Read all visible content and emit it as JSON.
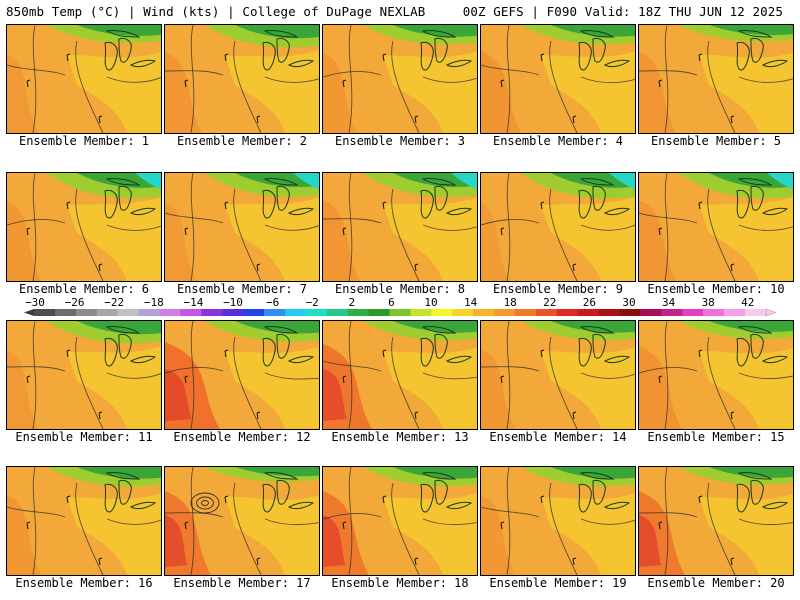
{
  "header": {
    "left_title": "850mb Temp (°C) | Wind (kts) | College of DuPage NEXLAB",
    "right_title": "00Z GEFS | F090 Valid: 18Z THU JUN 12 2025"
  },
  "colorbar": {
    "labels": [
      "−30",
      "−26",
      "−22",
      "−18",
      "−14",
      "−10",
      "−6",
      "−2",
      "2",
      "6",
      "10",
      "14",
      "18",
      "22",
      "26",
      "30",
      "34",
      "38",
      "42"
    ],
    "colors": [
      "#4c4c4c",
      "#6b6b6b",
      "#8a8a8a",
      "#a7a7a7",
      "#c0c0c0",
      "#b7a0d8",
      "#d07fe2",
      "#c455e8",
      "#8a35d8",
      "#5a2ee0",
      "#2244e6",
      "#2e8ff0",
      "#27c9f2",
      "#1ee0c8",
      "#27c889",
      "#2fae48",
      "#2e9a2e",
      "#7fc52a",
      "#c6e42a",
      "#f6f62a",
      "#f6d22a",
      "#f5b52b",
      "#f59a2b",
      "#f0792a",
      "#e8552a",
      "#de2a22",
      "#c81c1c",
      "#a81414",
      "#8a1010",
      "#a40f55",
      "#c8208a",
      "#e040c2",
      "#f070e0",
      "#f5a0ec",
      "#f7c8f0"
    ]
  },
  "panels": [
    {
      "label": "Ensemble Member: 1",
      "heat": 0.1,
      "green": 0.5
    },
    {
      "label": "Ensemble Member: 2",
      "heat": 0.3,
      "green": 0.8
    },
    {
      "label": "Ensemble Member: 3",
      "heat": 0.2,
      "green": 0.6
    },
    {
      "label": "Ensemble Member: 4",
      "heat": 0.4,
      "green": 0.6
    },
    {
      "label": "Ensemble Member: 5",
      "heat": 0.3,
      "green": 0.4
    },
    {
      "label": "Ensemble Member: 6",
      "heat": 0.2,
      "green": 1.0
    },
    {
      "label": "Ensemble Member: 7",
      "heat": 0.1,
      "green": 0.9
    },
    {
      "label": "Ensemble Member: 8",
      "heat": 0.3,
      "green": 0.9
    },
    {
      "label": "Ensemble Member: 9",
      "heat": 0.0,
      "green": 1.0
    },
    {
      "label": "Ensemble Member: 10",
      "heat": 0.3,
      "green": 1.0
    },
    {
      "label": "Ensemble Member: 11",
      "heat": 0.1,
      "green": 0.8
    },
    {
      "label": "Ensemble Member: 12",
      "heat": 0.9,
      "green": 0.7
    },
    {
      "label": "Ensemble Member: 13",
      "heat": 0.7,
      "green": 0.6
    },
    {
      "label": "Ensemble Member: 14",
      "heat": 0.2,
      "green": 0.6
    },
    {
      "label": "Ensemble Member: 15",
      "heat": 0.5,
      "green": 0.5
    },
    {
      "label": "Ensemble Member: 16",
      "heat": 0.2,
      "green": 0.6
    },
    {
      "label": "Ensemble Member: 17",
      "heat": 0.6,
      "green": 0.3
    },
    {
      "label": "Ensemble Member: 18",
      "heat": 0.6,
      "green": 0.6
    },
    {
      "label": "Ensemble Member: 19",
      "heat": 0.2,
      "green": 0.6
    },
    {
      "label": "Ensemble Member: 20",
      "heat": 0.6,
      "green": 0.5
    }
  ]
}
